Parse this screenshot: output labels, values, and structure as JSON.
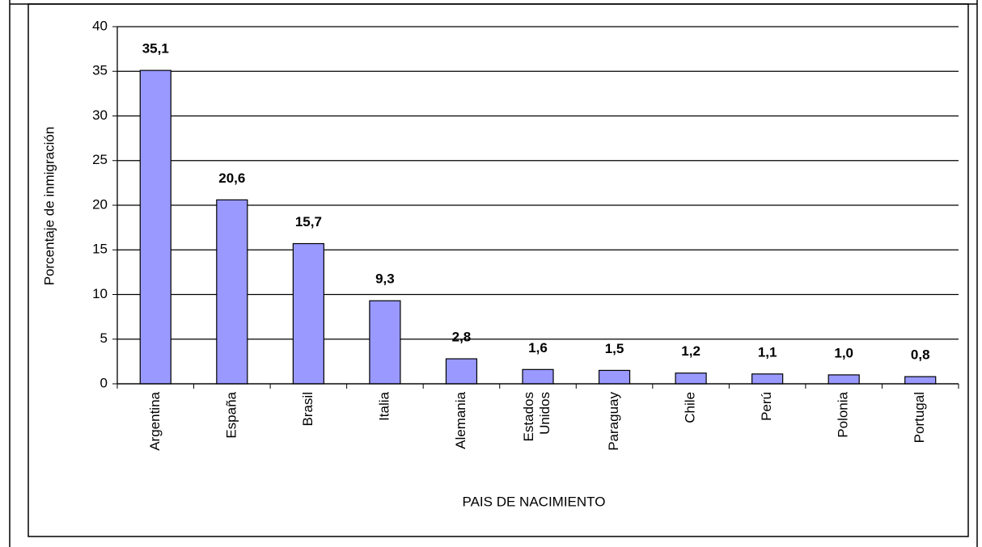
{
  "chart_data": {
    "type": "bar",
    "ylabel": "Porcentaje de inmigración",
    "xlabel": "PAIS DE NACIMIENTO",
    "categories": [
      "Argentina",
      "España",
      "Brasil",
      "Italia",
      "Alemania",
      "Estados Unidos",
      "Paraguay",
      "Chile",
      "Perú",
      "Polonia",
      "Portugal"
    ],
    "values": [
      35.1,
      20.6,
      15.7,
      9.3,
      2.8,
      1.6,
      1.5,
      1.2,
      1.1,
      1.0,
      0.8
    ],
    "value_labels": [
      "35,1",
      "20,6",
      "15,7",
      "9,3",
      "2,8",
      "1,6",
      "1,5",
      "1,2",
      "1,1",
      "1,0",
      "0,8"
    ],
    "color": "#9999ff",
    "ylim": [
      0,
      40
    ],
    "yticks": [
      0,
      5,
      10,
      15,
      20,
      25,
      30,
      35,
      40
    ],
    "grid": true
  }
}
